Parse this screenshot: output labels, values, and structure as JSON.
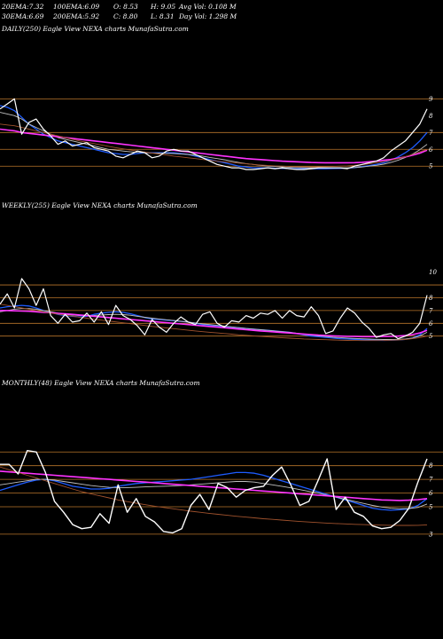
{
  "header": {
    "row1": [
      {
        "label": "20EMA:",
        "value": "7.32"
      },
      {
        "label": "100EMA:",
        "value": "6.09"
      },
      {
        "label": "O:",
        "value": "8.53"
      },
      {
        "label": "H:",
        "value": "9.05"
      },
      {
        "label": "Avg Vol:",
        "value": "0.108",
        "unit": "M"
      }
    ],
    "row2": [
      {
        "label": "30EMA:",
        "value": "6.69"
      },
      {
        "label": "200EMA:",
        "value": "5.92"
      },
      {
        "label": "C:",
        "value": "8.80"
      },
      {
        "label": "L:",
        "value": "8.31"
      },
      {
        "label": "Day Vol:",
        "value": "1.298",
        "unit": "M"
      }
    ]
  },
  "panels": [
    {
      "title": "DAILY(250) Eagle  View  NEXA charts MunafaSutra.com"
    },
    {
      "title": "WEEKLY(255) Eagle  View  NEXA charts MunafaSutra.com"
    },
    {
      "title": "MONTHLY(48) Eagle  View  NEXA charts MunafaSutra.com"
    }
  ],
  "colors": {
    "background": "#000000",
    "price": "#ffffff",
    "ema_short": "#1e5cff",
    "ema_long": "#ff33ff",
    "ema_mid": "#c0c0c0",
    "ema_brown": "#a0522d",
    "gridline": "#b8752a"
  },
  "chart_data": [
    {
      "type": "line",
      "name": "daily",
      "ylim": [
        3.8,
        9.6
      ],
      "yticks": [
        9,
        8,
        7,
        6,
        5
      ],
      "gridlines": [
        9,
        7,
        6,
        5
      ],
      "n": 60,
      "series": [
        {
          "key": "price",
          "color": "price",
          "width": 1.2,
          "values": [
            8.4,
            8.7,
            9.0,
            6.9,
            7.6,
            7.8,
            7.2,
            6.8,
            6.3,
            6.5,
            6.2,
            6.3,
            6.4,
            6.1,
            6.0,
            5.9,
            5.6,
            5.5,
            5.7,
            5.9,
            5.8,
            5.5,
            5.6,
            5.9,
            6.0,
            5.9,
            5.9,
            5.7,
            5.5,
            5.3,
            5.1,
            5.0,
            4.9,
            4.9,
            4.8,
            4.8,
            4.85,
            4.9,
            4.85,
            4.9,
            4.85,
            4.8,
            4.8,
            4.85,
            4.9,
            4.9,
            4.9,
            4.9,
            4.85,
            5.0,
            5.1,
            5.2,
            5.3,
            5.5,
            5.9,
            6.2,
            6.5,
            7.0,
            7.5,
            8.4
          ]
        },
        {
          "key": "ema20",
          "color": "ema_short",
          "width": 1.3,
          "values": [
            8.6,
            8.5,
            8.3,
            7.9,
            7.5,
            7.2,
            6.9,
            6.7,
            6.5,
            6.4,
            6.3,
            6.2,
            6.1,
            6.0,
            5.9,
            5.8,
            5.75,
            5.7,
            5.7,
            5.75,
            5.8,
            5.8,
            5.8,
            5.8,
            5.8,
            5.75,
            5.7,
            5.6,
            5.5,
            5.4,
            5.3,
            5.2,
            5.1,
            5.0,
            4.95,
            4.9,
            4.9,
            4.9,
            4.88,
            4.87,
            4.86,
            4.85,
            4.85,
            4.85,
            4.85,
            4.85,
            4.86,
            4.87,
            4.88,
            4.92,
            4.97,
            5.03,
            5.1,
            5.2,
            5.35,
            5.55,
            5.8,
            6.1,
            6.5,
            7.0
          ]
        },
        {
          "key": "ema30",
          "color": "ema_mid",
          "width": 0.9,
          "values": [
            8.2,
            8.1,
            8.0,
            7.8,
            7.5,
            7.3,
            7.1,
            6.9,
            6.7,
            6.6,
            6.5,
            6.4,
            6.3,
            6.2,
            6.1,
            6.0,
            5.95,
            5.9,
            5.85,
            5.82,
            5.8,
            5.78,
            5.77,
            5.76,
            5.75,
            5.72,
            5.7,
            5.65,
            5.6,
            5.52,
            5.45,
            5.38,
            5.3,
            5.22,
            5.15,
            5.1,
            5.05,
            5.0,
            4.98,
            4.96,
            4.94,
            4.92,
            4.9,
            4.9,
            4.9,
            4.9,
            4.9,
            4.9,
            4.9,
            4.92,
            4.95,
            5.0,
            5.05,
            5.12,
            5.22,
            5.35,
            5.52,
            5.72,
            5.98,
            6.3
          ]
        },
        {
          "key": "ema100",
          "color": "ema_long",
          "width": 1.6,
          "values": [
            7.2,
            7.15,
            7.1,
            7.0,
            6.95,
            6.9,
            6.85,
            6.8,
            6.75,
            6.7,
            6.65,
            6.6,
            6.55,
            6.5,
            6.45,
            6.4,
            6.35,
            6.3,
            6.25,
            6.2,
            6.15,
            6.1,
            6.05,
            6.0,
            5.95,
            5.9,
            5.85,
            5.8,
            5.75,
            5.7,
            5.65,
            5.6,
            5.55,
            5.5,
            5.45,
            5.42,
            5.39,
            5.36,
            5.33,
            5.3,
            5.28,
            5.26,
            5.24,
            5.22,
            5.21,
            5.2,
            5.2,
            5.2,
            5.2,
            5.21,
            5.23,
            5.26,
            5.3,
            5.35,
            5.4,
            5.47,
            5.55,
            5.65,
            5.77,
            5.95
          ]
        },
        {
          "key": "ema200",
          "color": "ema_brown",
          "width": 0.9,
          "values": [
            7.5,
            7.45,
            7.4,
            7.3,
            7.2,
            7.1,
            7.0,
            6.9,
            6.8,
            6.7,
            6.6,
            6.5,
            6.42,
            6.34,
            6.26,
            6.18,
            6.1,
            6.03,
            5.96,
            5.9,
            5.84,
            5.78,
            5.72,
            5.66,
            5.6,
            5.55,
            5.5,
            5.45,
            5.4,
            5.35,
            5.3,
            5.26,
            5.22,
            5.18,
            5.14,
            5.1,
            5.07,
            5.04,
            5.02,
            5.0,
            4.98,
            4.97,
            4.96,
            4.96,
            4.96,
            4.97,
            4.98,
            5.0,
            5.02,
            5.05,
            5.09,
            5.14,
            5.2,
            5.27,
            5.35,
            5.45,
            5.56,
            5.7,
            5.85,
            6.0
          ]
        }
      ]
    },
    {
      "type": "line",
      "name": "weekly",
      "ylim": [
        3.8,
        10.6
      ],
      "yticks": [
        10,
        8,
        7,
        6,
        5
      ],
      "gridlines": [
        9,
        8,
        7,
        6,
        5
      ],
      "n": 60,
      "series": [
        {
          "key": "price",
          "color": "price",
          "width": 1.2,
          "values": [
            7.5,
            8.3,
            7.2,
            9.5,
            8.7,
            7.4,
            8.7,
            6.6,
            6.0,
            6.7,
            6.1,
            6.2,
            6.8,
            6.1,
            6.9,
            5.9,
            7.4,
            6.6,
            6.3,
            5.8,
            5.1,
            6.3,
            5.7,
            5.3,
            6.0,
            6.5,
            6.1,
            5.9,
            6.7,
            6.9,
            6.0,
            5.7,
            6.2,
            6.1,
            6.6,
            6.4,
            6.8,
            6.7,
            7.0,
            6.4,
            7.0,
            6.6,
            6.5,
            7.3,
            6.6,
            5.2,
            5.4,
            6.4,
            7.2,
            6.8,
            6.1,
            5.6,
            4.9,
            5.1,
            5.2,
            4.8,
            5.0,
            5.3,
            6.0,
            8.2
          ]
        },
        {
          "key": "ema20",
          "color": "ema_short",
          "width": 1.3,
          "values": [
            7.2,
            7.3,
            7.35,
            7.4,
            7.35,
            7.2,
            7.0,
            6.85,
            6.7,
            6.6,
            6.55,
            6.5,
            6.55,
            6.7,
            6.8,
            6.85,
            6.9,
            6.85,
            6.75,
            6.6,
            6.45,
            6.35,
            6.3,
            6.25,
            6.2,
            6.15,
            6.1,
            6.0,
            5.9,
            5.85,
            5.8,
            5.75,
            5.7,
            5.65,
            5.6,
            5.55,
            5.5,
            5.45,
            5.4,
            5.35,
            5.3,
            5.2,
            5.1,
            5.0,
            4.95,
            4.9,
            4.85,
            4.8,
            4.78,
            4.75,
            4.72,
            4.7,
            4.68,
            4.67,
            4.68,
            4.7,
            4.75,
            4.85,
            5.1,
            5.6
          ]
        },
        {
          "key": "ema30",
          "color": "ema_mid",
          "width": 0.9,
          "values": [
            6.9,
            7.0,
            7.1,
            7.15,
            7.15,
            7.1,
            7.0,
            6.9,
            6.8,
            6.7,
            6.65,
            6.6,
            6.6,
            6.62,
            6.65,
            6.68,
            6.7,
            6.68,
            6.63,
            6.55,
            6.47,
            6.4,
            6.34,
            6.28,
            6.22,
            6.16,
            6.1,
            6.03,
            5.96,
            5.9,
            5.84,
            5.78,
            5.72,
            5.66,
            5.6,
            5.55,
            5.5,
            5.45,
            5.4,
            5.35,
            5.3,
            5.22,
            5.15,
            5.08,
            5.02,
            4.97,
            4.92,
            4.88,
            4.85,
            4.82,
            4.79,
            4.77,
            4.75,
            4.74,
            4.74,
            4.75,
            4.78,
            4.85,
            5.0,
            5.3
          ]
        },
        {
          "key": "ema100",
          "color": "ema_long",
          "width": 1.6,
          "values": [
            7.0,
            7.0,
            6.98,
            6.96,
            6.94,
            6.9,
            6.86,
            6.82,
            6.78,
            6.74,
            6.7,
            6.65,
            6.6,
            6.55,
            6.5,
            6.45,
            6.4,
            6.35,
            6.3,
            6.25,
            6.2,
            6.15,
            6.1,
            6.05,
            6.0,
            5.95,
            5.9,
            5.85,
            5.8,
            5.75,
            5.7,
            5.65,
            5.6,
            5.55,
            5.5,
            5.45,
            5.4,
            5.36,
            5.32,
            5.28,
            5.24,
            5.2,
            5.16,
            5.12,
            5.08,
            5.05,
            5.02,
            5.0,
            4.98,
            4.97,
            4.96,
            4.96,
            4.96,
            4.97,
            4.98,
            5.0,
            5.05,
            5.12,
            5.25,
            5.45
          ]
        },
        {
          "key": "ema200",
          "color": "ema_brown",
          "width": 0.9,
          "values": [
            7.5,
            7.4,
            7.3,
            7.2,
            7.1,
            7.0,
            6.9,
            6.8,
            6.72,
            6.64,
            6.56,
            6.48,
            6.4,
            6.32,
            6.25,
            6.18,
            6.11,
            6.04,
            5.97,
            5.9,
            5.83,
            5.76,
            5.7,
            5.64,
            5.58,
            5.52,
            5.46,
            5.4,
            5.35,
            5.3,
            5.25,
            5.2,
            5.15,
            5.1,
            5.06,
            5.02,
            4.98,
            4.94,
            4.9,
            4.87,
            4.84,
            4.81,
            4.78,
            4.76,
            4.74,
            4.72,
            4.7,
            4.68,
            4.67,
            4.66,
            4.65,
            4.65,
            4.65,
            4.66,
            4.68,
            4.7,
            4.74,
            4.8,
            4.88,
            5.0
          ]
        }
      ]
    },
    {
      "type": "line",
      "name": "monthly",
      "ylim": [
        2.8,
        9.6
      ],
      "yticks": [
        8,
        7,
        6,
        5,
        3
      ],
      "gridlines": [
        9,
        8,
        7,
        6,
        5,
        3
      ],
      "n": 48,
      "series": [
        {
          "key": "price",
          "color": "price",
          "width": 1.4,
          "values": [
            8.1,
            8.1,
            7.4,
            9.1,
            9.0,
            7.5,
            5.4,
            4.6,
            3.7,
            3.4,
            3.5,
            4.5,
            3.8,
            6.6,
            4.6,
            5.6,
            4.3,
            3.9,
            3.2,
            3.1,
            3.4,
            5.1,
            5.9,
            4.8,
            6.7,
            6.4,
            5.7,
            6.2,
            6.4,
            6.5,
            7.3,
            7.9,
            6.6,
            5.1,
            5.4,
            6.9,
            8.5,
            4.8,
            5.7,
            4.6,
            4.3,
            3.6,
            3.4,
            3.5,
            4.0,
            4.9,
            6.8,
            8.5
          ]
        },
        {
          "key": "ema20",
          "color": "ema_short",
          "width": 1.3,
          "values": [
            6.2,
            6.4,
            6.6,
            6.8,
            6.95,
            7.0,
            6.9,
            6.7,
            6.5,
            6.4,
            6.3,
            6.3,
            6.35,
            6.5,
            6.6,
            6.7,
            6.75,
            6.8,
            6.85,
            6.9,
            6.95,
            7.0,
            7.1,
            7.2,
            7.3,
            7.4,
            7.5,
            7.5,
            7.45,
            7.3,
            7.1,
            6.9,
            6.7,
            6.5,
            6.3,
            6.1,
            5.9,
            5.7,
            5.5,
            5.3,
            5.1,
            4.9,
            4.8,
            4.75,
            4.78,
            4.85,
            5.1,
            5.6
          ]
        },
        {
          "key": "ema30",
          "color": "ema_mid",
          "width": 0.9,
          "values": [
            6.6,
            6.7,
            6.8,
            6.9,
            7.0,
            7.0,
            6.95,
            6.85,
            6.75,
            6.65,
            6.55,
            6.48,
            6.42,
            6.4,
            6.4,
            6.42,
            6.45,
            6.48,
            6.5,
            6.52,
            6.55,
            6.6,
            6.65,
            6.7,
            6.75,
            6.8,
            6.85,
            6.85,
            6.8,
            6.7,
            6.6,
            6.5,
            6.38,
            6.25,
            6.12,
            6.0,
            5.85,
            5.7,
            5.55,
            5.4,
            5.25,
            5.1,
            4.98,
            4.9,
            4.86,
            4.87,
            4.95,
            5.2
          ]
        },
        {
          "key": "ema100",
          "color": "ema_long",
          "width": 1.6,
          "values": [
            7.6,
            7.55,
            7.5,
            7.45,
            7.4,
            7.35,
            7.3,
            7.25,
            7.2,
            7.15,
            7.1,
            7.05,
            7.0,
            6.95,
            6.9,
            6.85,
            6.8,
            6.75,
            6.7,
            6.65,
            6.6,
            6.55,
            6.5,
            6.45,
            6.4,
            6.35,
            6.3,
            6.25,
            6.2,
            6.15,
            6.1,
            6.05,
            6.0,
            5.95,
            5.9,
            5.85,
            5.8,
            5.75,
            5.7,
            5.65,
            5.6,
            5.55,
            5.5,
            5.48,
            5.46,
            5.48,
            5.52,
            5.6
          ]
        },
        {
          "key": "ema200",
          "color": "ema_brown",
          "width": 0.9,
          "values": [
            7.9,
            7.7,
            7.5,
            7.3,
            7.1,
            6.9,
            6.7,
            6.5,
            6.3,
            6.1,
            5.95,
            5.8,
            5.65,
            5.5,
            5.38,
            5.26,
            5.15,
            5.05,
            4.95,
            4.86,
            4.77,
            4.68,
            4.6,
            4.52,
            4.45,
            4.38,
            4.31,
            4.25,
            4.19,
            4.13,
            4.08,
            4.03,
            3.98,
            3.93,
            3.89,
            3.85,
            3.81,
            3.78,
            3.75,
            3.72,
            3.7,
            3.68,
            3.66,
            3.65,
            3.64,
            3.64,
            3.65,
            3.68
          ]
        }
      ]
    }
  ]
}
